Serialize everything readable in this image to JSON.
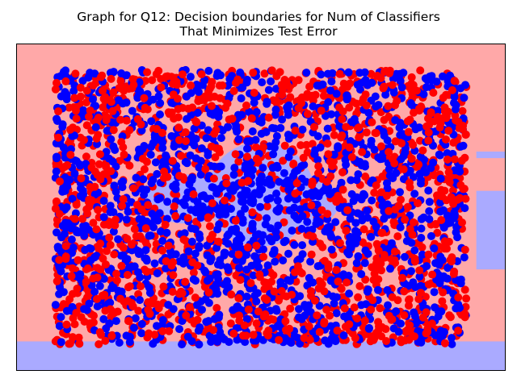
{
  "chart_data": {
    "type": "scatter",
    "title_lines": [
      "Graph for Q12: Decision boundaries for Num of Classifiers",
      "That Minimizes Test Error"
    ],
    "xlabel": "",
    "ylabel": "",
    "axes_ticks_visible": false,
    "grid": false,
    "legend": "none",
    "xlim": [
      0,
      1
    ],
    "ylim": [
      0,
      1
    ],
    "colors": {
      "class_red": "#ff0000",
      "class_blue": "#0000ff",
      "region_red": "#ffa8a8",
      "region_blue": "#aaaaff",
      "axes_frame": "#000000"
    },
    "decision_regions": {
      "background_class": "red",
      "blue_regions": [
        {
          "x": [
            0.0,
            1.0
          ],
          "y": [
            0.0,
            0.09
          ]
        },
        {
          "x": [
            0.94,
            1.0
          ],
          "y": [
            0.31,
            0.55
          ]
        },
        {
          "x": [
            0.94,
            1.0
          ],
          "y": [
            0.65,
            0.67
          ]
        },
        {
          "x": [
            0.39,
            0.61
          ],
          "y": [
            0.38,
            0.7
          ]
        },
        {
          "x": [
            0.43,
            0.66
          ],
          "y": [
            0.42,
            0.61
          ]
        },
        {
          "x": [
            0.26,
            0.44
          ],
          "y": [
            0.45,
            0.6
          ]
        }
      ]
    },
    "series": [
      {
        "class": "red",
        "color": "#ff0000",
        "approx_count": 1600,
        "x_range": [
          0.08,
          0.92
        ],
        "y_range": [
          0.08,
          0.92
        ],
        "density_center": [
          0.5,
          0.5
        ],
        "density_note": "sparser near the center"
      },
      {
        "class": "blue",
        "color": "#0000ff",
        "approx_count": 1600,
        "x_range": [
          0.08,
          0.92
        ],
        "y_range": [
          0.08,
          0.92
        ],
        "density_center": [
          0.48,
          0.52
        ],
        "density_note": "denser near the center"
      }
    ]
  }
}
